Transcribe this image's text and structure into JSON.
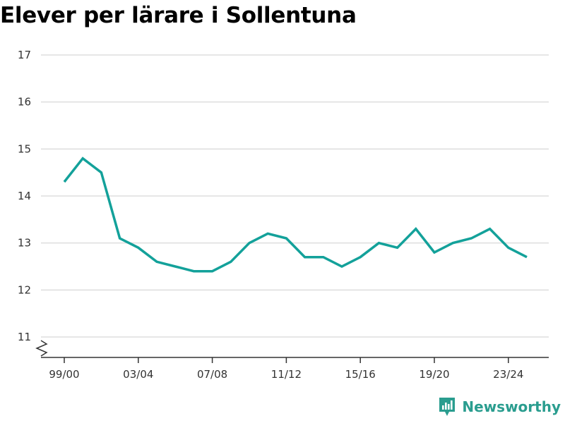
{
  "title": "Elever per lärare i Sollentuna",
  "brand": {
    "name": "Newsworthy",
    "icon": "newsworthy-logo-icon",
    "color": "#2a9d8f"
  },
  "colors": {
    "line": "#13a19a",
    "grid": "#dddddd",
    "axis": "#333333"
  },
  "chart_data": {
    "type": "line",
    "title": "Elever per lärare i Sollentuna",
    "xlabel": "",
    "ylabel": "",
    "ylim": [
      10.5,
      17
    ],
    "yticks": [
      11,
      12,
      13,
      14,
      15,
      16,
      17
    ],
    "y_axis_break": true,
    "grid": true,
    "xtick_labels": [
      "99/00",
      "03/04",
      "07/08",
      "11/12",
      "15/16",
      "19/20",
      "23/24"
    ],
    "categories": [
      "99/00",
      "00/01",
      "01/02",
      "02/03",
      "03/04",
      "04/05",
      "05/06",
      "06/07",
      "07/08",
      "08/09",
      "09/10",
      "10/11",
      "11/12",
      "12/13",
      "13/14",
      "14/15",
      "15/16",
      "16/17",
      "17/18",
      "18/19",
      "19/20",
      "20/21",
      "21/22",
      "22/23",
      "23/24",
      "24/25"
    ],
    "series": [
      {
        "values": [
          14.3,
          14.8,
          14.5,
          13.1,
          12.9,
          12.6,
          12.5,
          12.4,
          12.4,
          12.6,
          13.0,
          13.2,
          13.1,
          12.7,
          12.7,
          12.5,
          12.7,
          13.0,
          12.9,
          13.3,
          12.8,
          13.0,
          13.1,
          13.3,
          12.9,
          12.7
        ]
      }
    ]
  }
}
